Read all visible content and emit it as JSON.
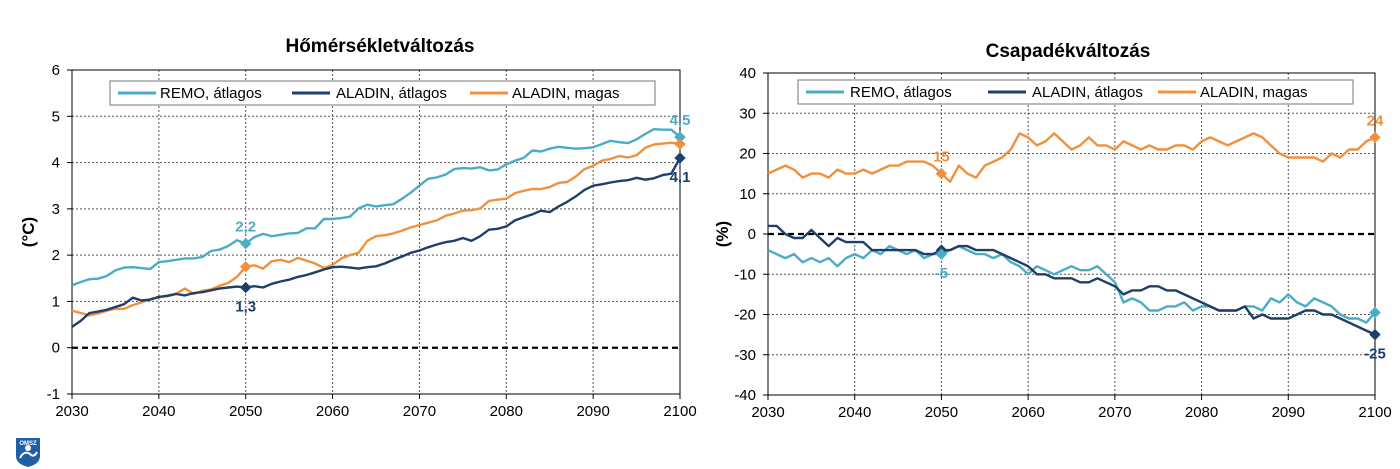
{
  "colors": {
    "remo": "#4BACC6",
    "aladin_avg": "#1F3F6B",
    "aladin_high": "#F0913F",
    "zero_line": "#000000",
    "grid": "#555555"
  },
  "logo": {
    "text": "OMSZ"
  },
  "chart_data": [
    {
      "type": "line",
      "title": "Hőmérsékletváltozás",
      "ylabel": "(°C)",
      "xlabel": "",
      "xlim": [
        2030,
        2100
      ],
      "ylim": [
        -1,
        6
      ],
      "xticks": [
        2030,
        2040,
        2050,
        2060,
        2070,
        2080,
        2090,
        2100
      ],
      "yticks": [
        -1,
        0,
        1,
        2,
        3,
        4,
        5,
        6
      ],
      "grid": true,
      "legend": "top",
      "legend_labels": [
        "REMO, átlagos",
        "ALADIN, átlagos",
        "ALADIN, magas"
      ],
      "x": [
        2030,
        2031,
        2032,
        2033,
        2034,
        2035,
        2036,
        2037,
        2038,
        2039,
        2040,
        2041,
        2042,
        2043,
        2044,
        2045,
        2046,
        2047,
        2048,
        2049,
        2050,
        2051,
        2052,
        2053,
        2054,
        2055,
        2056,
        2057,
        2058,
        2059,
        2060,
        2061,
        2062,
        2063,
        2064,
        2065,
        2066,
        2067,
        2068,
        2069,
        2070,
        2071,
        2072,
        2073,
        2074,
        2075,
        2076,
        2077,
        2078,
        2079,
        2080,
        2081,
        2082,
        2083,
        2084,
        2085,
        2086,
        2087,
        2088,
        2089,
        2090,
        2091,
        2092,
        2093,
        2094,
        2095,
        2096,
        2097,
        2098,
        2099,
        2100
      ],
      "series": [
        {
          "key": "remo",
          "values": [
            1.35,
            1.42,
            1.48,
            1.49,
            1.55,
            1.67,
            1.73,
            1.74,
            1.72,
            1.7,
            1.85,
            1.87,
            1.9,
            1.93,
            1.93,
            1.96,
            2.09,
            2.12,
            2.2,
            2.32,
            2.25,
            2.39,
            2.46,
            2.41,
            2.44,
            2.47,
            2.48,
            2.58,
            2.58,
            2.78,
            2.78,
            2.8,
            2.83,
            3.01,
            3.09,
            3.05,
            3.08,
            3.1,
            3.22,
            3.35,
            3.5,
            3.65,
            3.68,
            3.74,
            3.86,
            3.88,
            3.87,
            3.9,
            3.83,
            3.85,
            3.96,
            4.04,
            4.1,
            4.26,
            4.24,
            4.3,
            4.34,
            4.32,
            4.3,
            4.31,
            4.33,
            4.4,
            4.47,
            4.44,
            4.42,
            4.5,
            4.62,
            4.72,
            4.71,
            4.71,
            4.55
          ]
        },
        {
          "key": "aladin_avg",
          "values": [
            0.45,
            0.58,
            0.75,
            0.78,
            0.82,
            0.88,
            0.94,
            1.08,
            1.02,
            1.04,
            1.1,
            1.12,
            1.16,
            1.13,
            1.18,
            1.2,
            1.24,
            1.28,
            1.3,
            1.32,
            1.3,
            1.33,
            1.3,
            1.38,
            1.43,
            1.47,
            1.53,
            1.57,
            1.63,
            1.69,
            1.74,
            1.75,
            1.73,
            1.71,
            1.74,
            1.76,
            1.82,
            1.9,
            1.97,
            2.05,
            2.1,
            2.17,
            2.23,
            2.28,
            2.31,
            2.37,
            2.31,
            2.41,
            2.55,
            2.57,
            2.62,
            2.75,
            2.82,
            2.88,
            2.96,
            2.93,
            3.05,
            3.15,
            3.27,
            3.41,
            3.5,
            3.53,
            3.57,
            3.6,
            3.62,
            3.67,
            3.63,
            3.66,
            3.73,
            3.76,
            4.1
          ]
        },
        {
          "key": "aladin_high",
          "values": [
            0.8,
            0.75,
            0.7,
            0.74,
            0.8,
            0.84,
            0.84,
            0.92,
            0.98,
            1.05,
            1.09,
            1.13,
            1.17,
            1.28,
            1.16,
            1.23,
            1.26,
            1.34,
            1.4,
            1.53,
            1.75,
            1.78,
            1.71,
            1.87,
            1.9,
            1.85,
            1.94,
            1.88,
            1.82,
            1.72,
            1.79,
            1.93,
            2.0,
            2.05,
            2.31,
            2.41,
            2.43,
            2.47,
            2.53,
            2.6,
            2.65,
            2.7,
            2.75,
            2.85,
            2.9,
            2.96,
            2.97,
            3.01,
            3.17,
            3.2,
            3.22,
            3.34,
            3.39,
            3.43,
            3.43,
            3.47,
            3.56,
            3.58,
            3.7,
            3.86,
            3.93,
            4.04,
            4.08,
            4.14,
            4.11,
            4.16,
            4.32,
            4.39,
            4.41,
            4.43,
            4.4
          ]
        }
      ],
      "markers": [
        {
          "key": "remo",
          "x": 2050,
          "y": 2.25,
          "label": "2,2"
        },
        {
          "key": "aladin_high",
          "x": 2050,
          "y": 1.75,
          "label": ""
        },
        {
          "key": "aladin_avg",
          "x": 2050,
          "y": 1.3,
          "label": "1,3"
        },
        {
          "key": "remo",
          "x": 2100,
          "y": 4.55,
          "label": "4,5"
        },
        {
          "key": "aladin_high",
          "x": 2100,
          "y": 4.4,
          "label": ""
        },
        {
          "key": "aladin_avg",
          "x": 2100,
          "y": 4.1,
          "label": "4,1"
        }
      ]
    },
    {
      "type": "line",
      "title": "Csapadékváltozás",
      "ylabel": "(%)",
      "xlabel": "",
      "xlim": [
        2030,
        2100
      ],
      "ylim": [
        -40,
        40
      ],
      "xticks": [
        2030,
        2040,
        2050,
        2060,
        2070,
        2080,
        2090,
        2100
      ],
      "yticks": [
        -40,
        -30,
        -20,
        -10,
        0,
        10,
        20,
        30,
        40
      ],
      "grid": true,
      "legend": "top",
      "legend_labels": [
        "REMO, átlagos",
        "ALADIN, átlagos",
        "ALADIN, magas"
      ],
      "x": [
        2030,
        2031,
        2032,
        2033,
        2034,
        2035,
        2036,
        2037,
        2038,
        2039,
        2040,
        2041,
        2042,
        2043,
        2044,
        2045,
        2046,
        2047,
        2048,
        2049,
        2050,
        2051,
        2052,
        2053,
        2054,
        2055,
        2056,
        2057,
        2058,
        2059,
        2060,
        2061,
        2062,
        2063,
        2064,
        2065,
        2066,
        2067,
        2068,
        2069,
        2070,
        2071,
        2072,
        2073,
        2074,
        2075,
        2076,
        2077,
        2078,
        2079,
        2080,
        2081,
        2082,
        2083,
        2084,
        2085,
        2086,
        2087,
        2088,
        2089,
        2090,
        2091,
        2092,
        2093,
        2094,
        2095,
        2096,
        2097,
        2098,
        2099,
        2100
      ],
      "series": [
        {
          "key": "remo",
          "values": [
            -4,
            -5,
            -6,
            -5,
            -7,
            -6,
            -7,
            -6,
            -8,
            -6,
            -5,
            -6,
            -4,
            -5,
            -3,
            -4,
            -5,
            -4,
            -6,
            -5,
            -5,
            -4,
            -3,
            -4,
            -5,
            -5,
            -6,
            -5,
            -7,
            -8,
            -10,
            -8,
            -9,
            -10,
            -9,
            -8,
            -9,
            -9,
            -8,
            -10,
            -12,
            -17,
            -16,
            -17,
            -19,
            -19,
            -18,
            -18,
            -17,
            -19,
            -18,
            -18,
            -19,
            -19,
            -19,
            -18,
            -18,
            -19,
            -16,
            -17,
            -15,
            -17,
            -18,
            -16,
            -17,
            -18,
            -20,
            -21,
            -21,
            -22,
            -19.5
          ]
        },
        {
          "key": "aladin_avg",
          "values": [
            2,
            2,
            0,
            -1,
            -1,
            1,
            -1,
            -3,
            -1,
            -2,
            -2,
            -2,
            -4,
            -4,
            -4,
            -4,
            -4,
            -4,
            -5,
            -5,
            -4,
            -4,
            -3,
            -3,
            -4,
            -4,
            -4,
            -5,
            -6,
            -7,
            -8,
            -10,
            -10,
            -11,
            -11,
            -11,
            -12,
            -12,
            -11,
            -12,
            -13,
            -15,
            -14,
            -14,
            -13,
            -13,
            -14,
            -14,
            -15,
            -16,
            -17,
            -18,
            -19,
            -19,
            -19,
            -18,
            -21,
            -20,
            -21,
            -21,
            -21,
            -20,
            -19,
            -19,
            -20,
            -20,
            -21,
            -22,
            -23,
            -24,
            -25
          ]
        },
        {
          "key": "aladin_high",
          "values": [
            15,
            16,
            17,
            16,
            14,
            15,
            15,
            14,
            16,
            15,
            15,
            16,
            15,
            16,
            17,
            17,
            18,
            18,
            18,
            17,
            15,
            13,
            17,
            15,
            14,
            17,
            18,
            19,
            21,
            25,
            24,
            22,
            23,
            25,
            23,
            21,
            22,
            24,
            22,
            22,
            21,
            23,
            22,
            21,
            22,
            21,
            21,
            22,
            22,
            21,
            23,
            24,
            23,
            22,
            23,
            24,
            25,
            24,
            22,
            20,
            19,
            19,
            19,
            19,
            18,
            20,
            19,
            21,
            21,
            23,
            24
          ]
        }
      ],
      "markers": [
        {
          "key": "aladin_high",
          "x": 2050,
          "y": 15,
          "label": "15"
        },
        {
          "key": "aladin_avg",
          "x": 2050,
          "y": -4,
          "label": ""
        },
        {
          "key": "remo",
          "x": 2050,
          "y": -5,
          "label": "-5"
        },
        {
          "key": "aladin_high",
          "x": 2100,
          "y": 24,
          "label": "24"
        },
        {
          "key": "remo",
          "x": 2100,
          "y": -19.5,
          "label": ""
        },
        {
          "key": "aladin_avg",
          "x": 2100,
          "y": -25,
          "label": "-25"
        }
      ]
    }
  ]
}
